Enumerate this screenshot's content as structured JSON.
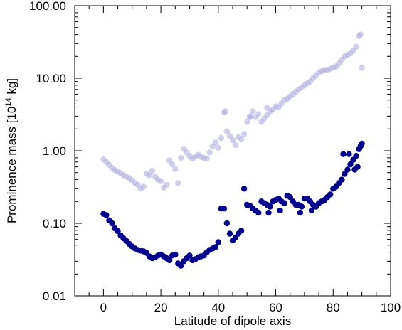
{
  "chart_data": {
    "type": "scatter",
    "xlabel": "Latitude of dipole axis",
    "ylabel_main": "Prominence mass [10",
    "ylabel_exp": "14",
    "ylabel_unit": " kg]",
    "xlim": [
      -10,
      100
    ],
    "ylim": [
      0.01,
      100
    ],
    "y_scale": "log",
    "x_ticks": [
      0,
      20,
      40,
      60,
      80,
      100
    ],
    "x_tick_labels": [
      "0",
      "20",
      "40",
      "60",
      "80",
      "100"
    ],
    "y_ticks": [
      0.01,
      0.1,
      1,
      10,
      100
    ],
    "y_tick_labels": [
      "0.01",
      "0.10",
      "1.00",
      "10.00",
      "100.00"
    ],
    "series": [
      {
        "color": "#aaaadd",
        "opacity": 0.55,
        "points": [
          [
            0,
            0.76
          ],
          [
            1,
            0.7
          ],
          [
            2,
            0.64
          ],
          [
            3,
            0.58
          ],
          [
            4,
            0.54
          ],
          [
            5,
            0.52
          ],
          [
            6,
            0.49
          ],
          [
            7,
            0.46
          ],
          [
            8,
            0.44
          ],
          [
            9,
            0.42
          ],
          [
            10,
            0.39
          ],
          [
            11,
            0.36
          ],
          [
            12,
            0.34
          ],
          [
            13,
            0.3
          ],
          [
            14,
            0.32
          ],
          [
            15,
            0.48
          ],
          [
            16,
            0.46
          ],
          [
            17,
            0.53
          ],
          [
            18,
            0.44
          ],
          [
            19,
            0.4
          ],
          [
            20,
            0.38
          ],
          [
            21,
            0.31
          ],
          [
            22,
            0.34
          ],
          [
            23,
            0.74
          ],
          [
            24,
            0.65
          ],
          [
            25,
            0.56
          ],
          [
            26,
            0.36
          ],
          [
            27,
            0.8
          ],
          [
            28,
            1.06
          ],
          [
            29,
            0.95
          ],
          [
            30,
            0.85
          ],
          [
            31,
            0.78
          ],
          [
            32,
            0.83
          ],
          [
            33,
            0.88
          ],
          [
            34,
            0.82
          ],
          [
            35,
            0.8
          ],
          [
            36,
            0.78
          ],
          [
            37,
            0.95
          ],
          [
            38,
            1.15
          ],
          [
            39,
            1.3
          ],
          [
            40,
            1.1
          ],
          [
            41,
            1.5
          ],
          [
            42,
            3.4
          ],
          [
            43,
            1.85
          ],
          [
            44,
            1.6
          ],
          [
            45,
            1.4
          ],
          [
            46,
            1.2
          ],
          [
            47,
            1.55
          ],
          [
            48,
            1.45
          ],
          [
            49,
            1.7
          ],
          [
            50,
            2.5
          ],
          [
            51,
            3.0
          ],
          [
            52,
            3.5
          ],
          [
            53,
            2.9
          ],
          [
            54,
            3.2
          ],
          [
            55,
            2.5
          ],
          [
            56,
            2.8
          ],
          [
            57,
            3.1
          ],
          [
            58,
            3.5
          ],
          [
            59,
            3.7
          ],
          [
            60,
            4.1
          ],
          [
            61,
            4.0
          ],
          [
            62,
            4.5
          ],
          [
            63,
            5.0
          ],
          [
            64,
            5.2
          ],
          [
            65,
            5.6
          ],
          [
            66,
            6.0
          ],
          [
            67,
            6.5
          ],
          [
            68,
            7.0
          ],
          [
            69,
            7.5
          ],
          [
            70,
            8.0
          ],
          [
            71,
            8.5
          ],
          [
            72,
            9.0
          ],
          [
            73,
            10.0
          ],
          [
            74,
            11.0
          ],
          [
            75,
            12.0
          ],
          [
            76,
            12.5
          ],
          [
            77,
            13.0
          ],
          [
            78,
            13.0
          ],
          [
            79,
            13.5
          ],
          [
            80,
            14.0
          ],
          [
            81,
            14.5
          ],
          [
            82,
            16.0
          ],
          [
            83,
            18.0
          ],
          [
            84,
            20.0
          ],
          [
            85,
            21.0
          ],
          [
            86,
            22.0
          ],
          [
            87,
            24.0
          ],
          [
            88,
            27.0
          ],
          [
            89,
            38.0
          ],
          [
            89.5,
            40.0
          ],
          [
            90,
            14.0
          ],
          [
            42.5,
            3.5
          ],
          [
            51,
            2.9
          ],
          [
            57,
            3.9
          ]
        ]
      },
      {
        "color": "#00008b",
        "opacity": 1,
        "points": [
          [
            0,
            0.135
          ],
          [
            1,
            0.13
          ],
          [
            2,
            0.11
          ],
          [
            3,
            0.1
          ],
          [
            4,
            0.085
          ],
          [
            5,
            0.078
          ],
          [
            6,
            0.068
          ],
          [
            7,
            0.062
          ],
          [
            8,
            0.057
          ],
          [
            9,
            0.052
          ],
          [
            10,
            0.048
          ],
          [
            11,
            0.045
          ],
          [
            12,
            0.043
          ],
          [
            13,
            0.042
          ],
          [
            14,
            0.041
          ],
          [
            15,
            0.039
          ],
          [
            16,
            0.035
          ],
          [
            17,
            0.033
          ],
          [
            18,
            0.034
          ],
          [
            19,
            0.036
          ],
          [
            20,
            0.037
          ],
          [
            21,
            0.035
          ],
          [
            22,
            0.033
          ],
          [
            23,
            0.031
          ],
          [
            24,
            0.036
          ],
          [
            25,
            0.037
          ],
          [
            26,
            0.028
          ],
          [
            27,
            0.026
          ],
          [
            28,
            0.03
          ],
          [
            29,
            0.033
          ],
          [
            30,
            0.036
          ],
          [
            31,
            0.031
          ],
          [
            32,
            0.032
          ],
          [
            33,
            0.034
          ],
          [
            34,
            0.035
          ],
          [
            35,
            0.036
          ],
          [
            36,
            0.04
          ],
          [
            37,
            0.043
          ],
          [
            38,
            0.045
          ],
          [
            39,
            0.047
          ],
          [
            40,
            0.055
          ],
          [
            41,
            0.16
          ],
          [
            42,
            0.16
          ],
          [
            43,
            0.1
          ],
          [
            44,
            0.072
          ],
          [
            45,
            0.058
          ],
          [
            46,
            0.064
          ],
          [
            47,
            0.072
          ],
          [
            48,
            0.079
          ],
          [
            49,
            0.3
          ],
          [
            50,
            0.18
          ],
          [
            51,
            0.175
          ],
          [
            52,
            0.16
          ],
          [
            53,
            0.15
          ],
          [
            54,
            0.14
          ],
          [
            55,
            0.2
          ],
          [
            56,
            0.19
          ],
          [
            57,
            0.18
          ],
          [
            58,
            0.17
          ],
          [
            59,
            0.2
          ],
          [
            60,
            0.21
          ],
          [
            61,
            0.22
          ],
          [
            62,
            0.2
          ],
          [
            63,
            0.19
          ],
          [
            64,
            0.24
          ],
          [
            65,
            0.23
          ],
          [
            66,
            0.2
          ],
          [
            67,
            0.18
          ],
          [
            68,
            0.18
          ],
          [
            69,
            0.17
          ],
          [
            70,
            0.22
          ],
          [
            71,
            0.22
          ],
          [
            72,
            0.2
          ],
          [
            73,
            0.18
          ],
          [
            74,
            0.17
          ],
          [
            75,
            0.19
          ],
          [
            76,
            0.2
          ],
          [
            77,
            0.21
          ],
          [
            78,
            0.23
          ],
          [
            79,
            0.25
          ],
          [
            80,
            0.3
          ],
          [
            81,
            0.32
          ],
          [
            82,
            0.36
          ],
          [
            83,
            0.4
          ],
          [
            84,
            0.48
          ],
          [
            85,
            0.55
          ],
          [
            86,
            0.65
          ],
          [
            87,
            0.75
          ],
          [
            88,
            0.85
          ],
          [
            89,
            1.05
          ],
          [
            89.5,
            1.15
          ],
          [
            90,
            1.25
          ],
          [
            83.5,
            0.9
          ],
          [
            85.5,
            0.9
          ],
          [
            87.5,
            0.55
          ],
          [
            88.5,
            0.6
          ],
          [
            57.5,
            0.14
          ],
          [
            61.5,
            0.15
          ],
          [
            68.5,
            0.14
          ],
          [
            72.5,
            0.15
          ]
        ]
      }
    ]
  }
}
